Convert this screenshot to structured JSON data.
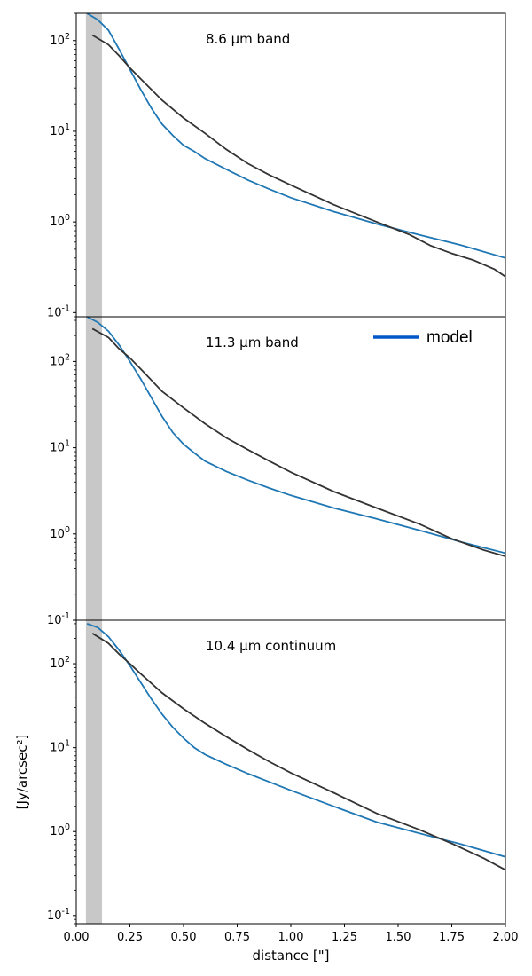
{
  "chart_data": [
    {
      "type": "line",
      "annotation": "8.6 μm band",
      "scale": "log",
      "xlim": [
        0,
        2
      ],
      "ylim": [
        0.09,
        200
      ],
      "yticks": [
        0.1,
        1,
        10,
        100
      ],
      "shaded_band": [
        0.045,
        0.12
      ],
      "series": [
        {
          "color": "#1f77b4",
          "x": [
            0.05,
            0.1,
            0.15,
            0.2,
            0.25,
            0.3,
            0.35,
            0.4,
            0.45,
            0.5,
            0.55,
            0.6,
            0.7,
            0.8,
            0.9,
            1.0,
            1.2,
            1.4,
            1.6,
            1.8,
            2.0
          ],
          "y": [
            200,
            170,
            130,
            80,
            48,
            29,
            18,
            12,
            9,
            7,
            6,
            5,
            3.8,
            2.9,
            2.3,
            1.85,
            1.3,
            0.95,
            0.72,
            0.55,
            0.4
          ]
        },
        {
          "color": "#333333",
          "x": [
            0.075,
            0.15,
            0.2,
            0.25,
            0.3,
            0.4,
            0.5,
            0.6,
            0.7,
            0.8,
            0.9,
            1.0,
            1.2,
            1.4,
            1.55,
            1.65,
            1.75,
            1.85,
            1.95,
            2.0
          ],
          "y": [
            115,
            90,
            68,
            50,
            38,
            22,
            14,
            9.5,
            6.3,
            4.4,
            3.3,
            2.55,
            1.55,
            1.0,
            0.73,
            0.55,
            0.45,
            0.38,
            0.3,
            0.25
          ]
        }
      ]
    },
    {
      "type": "line",
      "annotation": "11.3 μm band",
      "scale": "log",
      "xlim": [
        0,
        2
      ],
      "ylim": [
        0.1,
        330
      ],
      "yticks": [
        0.1,
        1,
        10,
        100
      ],
      "shaded_band": [
        0.045,
        0.12
      ],
      "series": [
        {
          "color": "#1f77b4",
          "x": [
            0.05,
            0.1,
            0.15,
            0.2,
            0.25,
            0.3,
            0.35,
            0.4,
            0.45,
            0.5,
            0.55,
            0.6,
            0.7,
            0.8,
            0.9,
            1.0,
            1.2,
            1.4,
            1.6,
            1.8,
            2.0
          ],
          "y": [
            330,
            285,
            225,
            155,
            100,
            63,
            38,
            23,
            15,
            11,
            8.7,
            7,
            5.3,
            4.2,
            3.4,
            2.8,
            2.0,
            1.5,
            1.1,
            0.8,
            0.6
          ]
        },
        {
          "color": "#333333",
          "x": [
            0.075,
            0.15,
            0.2,
            0.25,
            0.3,
            0.4,
            0.5,
            0.6,
            0.7,
            0.8,
            0.9,
            1.0,
            1.2,
            1.4,
            1.6,
            1.75,
            1.9,
            2.0
          ],
          "y": [
            240,
            190,
            140,
            110,
            82,
            45,
            29,
            19,
            13,
            9.5,
            7,
            5.2,
            3.1,
            2.0,
            1.3,
            0.88,
            0.65,
            0.55
          ]
        }
      ],
      "legend": {
        "label": "model",
        "color": "#0057c7",
        "placement": "upper right"
      }
    },
    {
      "type": "line",
      "annotation": "10.4 μm continuum",
      "scale": "log",
      "xlim": [
        0,
        2
      ],
      "ylim": [
        0.08,
        330
      ],
      "yticks": [
        0.1,
        1,
        10,
        100
      ],
      "xticks": [
        0.0,
        0.25,
        0.5,
        0.75,
        1.0,
        1.25,
        1.5,
        1.75,
        2.0
      ],
      "xtick_labels": [
        "0.00",
        "0.25",
        "0.50",
        "0.75",
        "1.00",
        "1.25",
        "1.50",
        "1.75",
        "2.00"
      ],
      "shaded_band": [
        0.045,
        0.12
      ],
      "series": [
        {
          "color": "#1f77b4",
          "x": [
            0.05,
            0.1,
            0.15,
            0.2,
            0.25,
            0.3,
            0.35,
            0.4,
            0.45,
            0.5,
            0.55,
            0.6,
            0.7,
            0.8,
            0.9,
            1.0,
            1.2,
            1.4,
            1.6,
            1.8,
            2.0
          ],
          "y": [
            300,
            270,
            210,
            145,
            95,
            60,
            38,
            25,
            17.5,
            13,
            10,
            8.3,
            6.3,
            4.9,
            3.9,
            3.1,
            2.0,
            1.3,
            0.95,
            0.7,
            0.5
          ]
        },
        {
          "color": "#333333",
          "x": [
            0.075,
            0.15,
            0.2,
            0.25,
            0.3,
            0.4,
            0.5,
            0.6,
            0.7,
            0.8,
            0.9,
            1.0,
            1.2,
            1.4,
            1.6,
            1.75,
            1.9,
            2.0
          ],
          "y": [
            230,
            175,
            130,
            100,
            76,
            45,
            29,
            19.5,
            13.5,
            9.5,
            6.8,
            5,
            2.9,
            1.65,
            1.05,
            0.72,
            0.48,
            0.35
          ]
        }
      ],
      "xlabel": "distance [\"]"
    }
  ],
  "ylabel": "[Jy/arcsec²]"
}
